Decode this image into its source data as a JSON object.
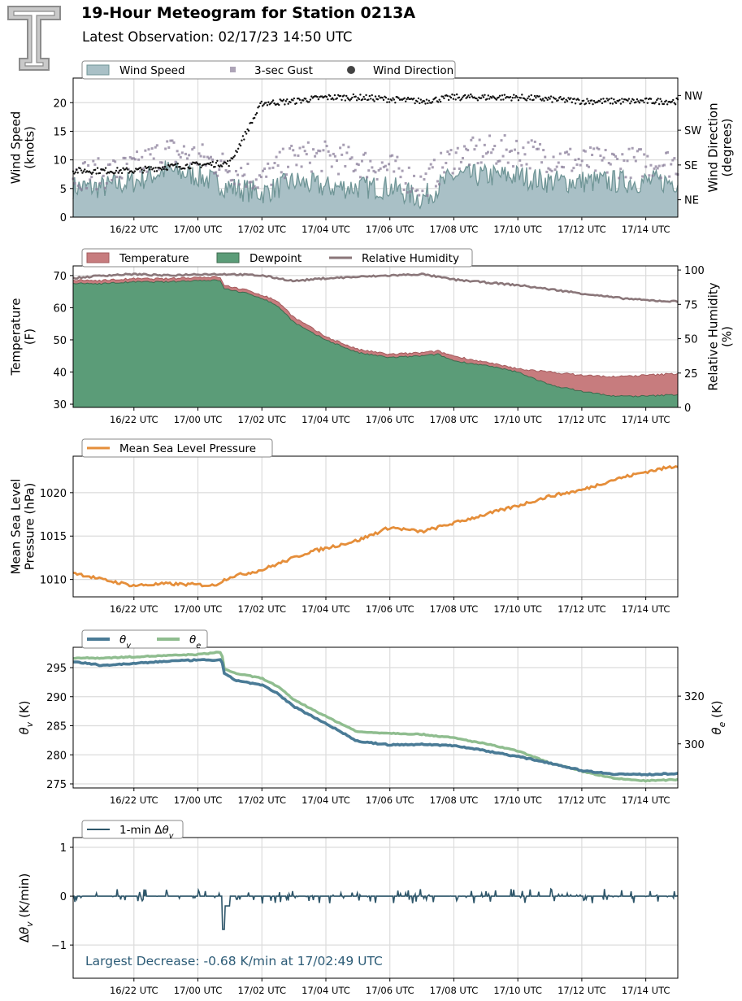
{
  "header": {
    "title": "19-Hour Meteogram for Station 0213A",
    "subtitle": "Latest Observation: 02/17/23 14:50 UTC"
  },
  "logo": {
    "icon": "double-t-logo-icon"
  },
  "chart_data": [
    {
      "type": "area",
      "xlabel_ticks": [
        "16/22 UTC",
        "17/00 UTC",
        "17/02 UTC",
        "17/04 UTC",
        "17/06 UTC",
        "17/08 UTC",
        "17/10 UTC",
        "17/12 UTC",
        "17/14 UTC"
      ],
      "xlim_hours": [
        -1.9,
        17.0
      ],
      "ylabel": "Wind Speed\n(knots)",
      "ylim": [
        0,
        24.3
      ],
      "yticks": [
        0,
        5,
        10,
        15,
        20
      ],
      "y2label": "Wind Direction\n(degrees)",
      "y2ticks": [
        "NE",
        "SE",
        "SW",
        "NW"
      ],
      "y2lim": [
        0,
        360
      ],
      "legend": [
        "Wind Speed",
        "3-sec Gust",
        "Wind Direction"
      ],
      "legend_position": "top-left",
      "grid": true,
      "colors": {
        "speed_fill": "#a9c0c6",
        "speed_line": "#6f9596",
        "gust": "#8a7d99",
        "direction": "#111111"
      },
      "series": [
        {
          "name": "Wind Speed",
          "x_hours": [
            -1.9,
            -1,
            0,
            1,
            2,
            3,
            4,
            5,
            6,
            7,
            8,
            9,
            10,
            11,
            12,
            13,
            14,
            15,
            16,
            17
          ],
          "values": [
            5,
            5,
            6,
            8,
            7,
            5,
            4,
            6,
            5,
            5,
            5,
            3,
            7,
            7,
            7,
            6,
            6,
            6,
            6,
            6
          ]
        },
        {
          "name": "3-sec Gust",
          "x_hours": [
            -1.9,
            -1,
            0,
            1,
            2,
            3,
            4,
            5,
            6,
            7,
            8,
            9,
            10,
            11,
            12,
            13,
            14,
            15,
            16,
            17
          ],
          "values": [
            7,
            7,
            8,
            11,
            10,
            8,
            6,
            10,
            10,
            9,
            8,
            5,
            10,
            11,
            11,
            10,
            9,
            9,
            9,
            9
          ]
        },
        {
          "name": "Wind Direction",
          "x_hours": [
            -1.9,
            -1,
            0,
            1,
            2,
            3,
            4,
            5,
            6,
            7,
            8,
            9,
            10,
            11,
            12,
            13,
            14,
            15,
            16,
            17
          ],
          "values_deg": [
            120,
            120,
            120,
            130,
            135,
            140,
            295,
            300,
            310,
            310,
            305,
            300,
            310,
            310,
            310,
            305,
            300,
            300,
            300,
            300
          ]
        }
      ]
    },
    {
      "type": "area",
      "xlabel_ticks": [
        "16/22 UTC",
        "17/00 UTC",
        "17/02 UTC",
        "17/04 UTC",
        "17/06 UTC",
        "17/08 UTC",
        "17/10 UTC",
        "17/12 UTC",
        "17/14 UTC"
      ],
      "xlim_hours": [
        -1.9,
        17.0
      ],
      "ylabel": "Temperature\n(F)",
      "ylim": [
        29,
        73
      ],
      "yticks": [
        30,
        40,
        50,
        60,
        70
      ],
      "y2label": "Relative Humidity\n(%)",
      "y2lim": [
        0,
        103
      ],
      "y2ticks": [
        0,
        25,
        50,
        75,
        100
      ],
      "legend": [
        "Temperature",
        "Dewpoint",
        "Relative Humidity"
      ],
      "legend_position": "top-left",
      "grid": true,
      "colors": {
        "temperature": "#c77c7e",
        "dewpoint": "#5b9c78",
        "rh": "#8a7679"
      },
      "series": [
        {
          "name": "Temperature",
          "x_hours": [
            -1.9,
            -1,
            0,
            1,
            2,
            2.7,
            2.8,
            3.5,
            4,
            4.5,
            5,
            5.5,
            6,
            7,
            8,
            9,
            9.5,
            10,
            11,
            12,
            13,
            14,
            15,
            16,
            17
          ],
          "values": [
            68.5,
            68.5,
            69,
            69,
            69.5,
            69.5,
            67,
            65.5,
            64,
            62,
            57,
            54,
            51,
            47,
            45.5,
            46,
            46.5,
            45,
            43,
            41,
            40,
            39,
            38.5,
            39,
            39.5
          ]
        },
        {
          "name": "Dewpoint",
          "x_hours": [
            -1.9,
            -1,
            0,
            1,
            2,
            2.7,
            2.8,
            3.5,
            4,
            4.5,
            5,
            5.5,
            6,
            7,
            8,
            9,
            9.5,
            10,
            11,
            12,
            13,
            14,
            15,
            16,
            17
          ],
          "values": [
            67.5,
            67.5,
            68,
            68,
            68.5,
            68.5,
            66,
            64.5,
            63,
            60.5,
            55.5,
            52.5,
            50,
            46,
            44.5,
            45,
            45.5,
            43.5,
            42,
            40,
            36,
            34,
            32.5,
            32.5,
            33
          ]
        },
        {
          "name": "Relative Humidity",
          "x_hours": [
            -1.9,
            -1,
            0,
            1,
            2,
            3,
            4,
            5,
            6,
            7,
            8,
            9,
            10,
            11,
            12,
            13,
            14,
            15,
            16,
            17
          ],
          "values": [
            94,
            96,
            97,
            96,
            97,
            97,
            96,
            92,
            94,
            95,
            96,
            97,
            93,
            91,
            89,
            86,
            83,
            80,
            78,
            77
          ]
        }
      ]
    },
    {
      "type": "line",
      "xlabel_ticks": [
        "16/22 UTC",
        "17/00 UTC",
        "17/02 UTC",
        "17/04 UTC",
        "17/06 UTC",
        "17/08 UTC",
        "17/10 UTC",
        "17/12 UTC",
        "17/14 UTC"
      ],
      "xlim_hours": [
        -1.9,
        17.0
      ],
      "ylabel": "Mean Sea Level\nPressure (hPa)",
      "ylim": [
        1008.0,
        1024.2
      ],
      "yticks": [
        1010,
        1015,
        1020
      ],
      "legend": [
        "Mean Sea Level Pressure"
      ],
      "legend_position": "top-left",
      "grid": true,
      "colors": {
        "mslp": "#e58e3a"
      },
      "series": [
        {
          "name": "Mean Sea Level Pressure",
          "x_hours": [
            -1.9,
            -1,
            0,
            1,
            2,
            2.5,
            3,
            4,
            5,
            5.5,
            6,
            7,
            8,
            9,
            10,
            11,
            12,
            13,
            14,
            15,
            16,
            17
          ],
          "values": [
            1010.8,
            1010,
            1009.3,
            1009.5,
            1009.4,
            1009.3,
            1010.3,
            1011.1,
            1012.5,
            1013.2,
            1013.6,
            1014.5,
            1016,
            1015.5,
            1016.5,
            1017.5,
            1018.5,
            1019.6,
            1020.3,
            1021.5,
            1022.4,
            1023.1
          ]
        }
      ]
    },
    {
      "type": "line",
      "xlabel_ticks": [
        "16/22 UTC",
        "17/00 UTC",
        "17/02 UTC",
        "17/04 UTC",
        "17/06 UTC",
        "17/08 UTC",
        "17/10 UTC",
        "17/12 UTC",
        "17/14 UTC"
      ],
      "xlim_hours": [
        -1.9,
        17.0
      ],
      "ylabel": "θv (K)",
      "ylim": [
        274.3,
        298.5
      ],
      "yticks": [
        275,
        280,
        285,
        290,
        295
      ],
      "y2label": "θe (K)",
      "y2lim": [
        281.5,
        340.5
      ],
      "y2ticks": [
        300,
        320
      ],
      "legend": [
        "θv",
        "θe"
      ],
      "legend_position": "top-left",
      "grid": true,
      "colors": {
        "theta_v": "#4a7b96",
        "theta_e": "#8fbd8f"
      },
      "series": [
        {
          "name": "θv",
          "x_hours": [
            -1.9,
            -1,
            0,
            1,
            2,
            2.75,
            2.8,
            3.2,
            4,
            4.5,
            5,
            6,
            7,
            8,
            9,
            10,
            11,
            12,
            13,
            14,
            15,
            16,
            17
          ],
          "values": [
            296,
            295.4,
            295.7,
            296.1,
            296.3,
            296.3,
            294,
            292.8,
            292,
            290.5,
            288.3,
            285.4,
            282.3,
            281.7,
            281.8,
            281.6,
            280.7,
            279.7,
            278.6,
            277.3,
            276.7,
            276.6,
            276.8
          ]
        },
        {
          "name": "θe",
          "x_hours": [
            -1.9,
            -1,
            0,
            1,
            2,
            2.75,
            2.8,
            3.2,
            4,
            4.5,
            5,
            6,
            7,
            8,
            9,
            10,
            11,
            12,
            13,
            14,
            15,
            16,
            17
          ],
          "values": [
            336,
            336,
            336.5,
            337,
            337.5,
            338.5,
            331.5,
            329.5,
            327.5,
            324,
            318.5,
            311.5,
            305,
            304.5,
            304,
            302.5,
            300,
            297,
            292,
            288.5,
            285.5,
            284.5,
            285
          ]
        }
      ]
    },
    {
      "type": "line",
      "xlabel_ticks": [
        "16/22 UTC",
        "17/00 UTC",
        "17/02 UTC",
        "17/04 UTC",
        "17/06 UTC",
        "17/08 UTC",
        "17/10 UTC",
        "17/12 UTC",
        "17/14 UTC"
      ],
      "xlim_hours": [
        -1.9,
        17.0
      ],
      "ylabel": "Δθv (K/min)",
      "ylim": [
        -1.68,
        1.2
      ],
      "yticks": [
        -1,
        0,
        1
      ],
      "legend": [
        "1-min Δθv"
      ],
      "legend_position": "top-left",
      "grid": true,
      "colors": {
        "dtheta": "#2e566a"
      },
      "annotation": "Largest Decrease: -0.68 K/min at 17/02:49 UTC",
      "series": [
        {
          "name": "1-min Δθv",
          "x_hours": [
            -1.9,
            2.8,
            2.82,
            17
          ],
          "values": [
            0,
            0,
            -0.68,
            0
          ]
        }
      ]
    }
  ]
}
